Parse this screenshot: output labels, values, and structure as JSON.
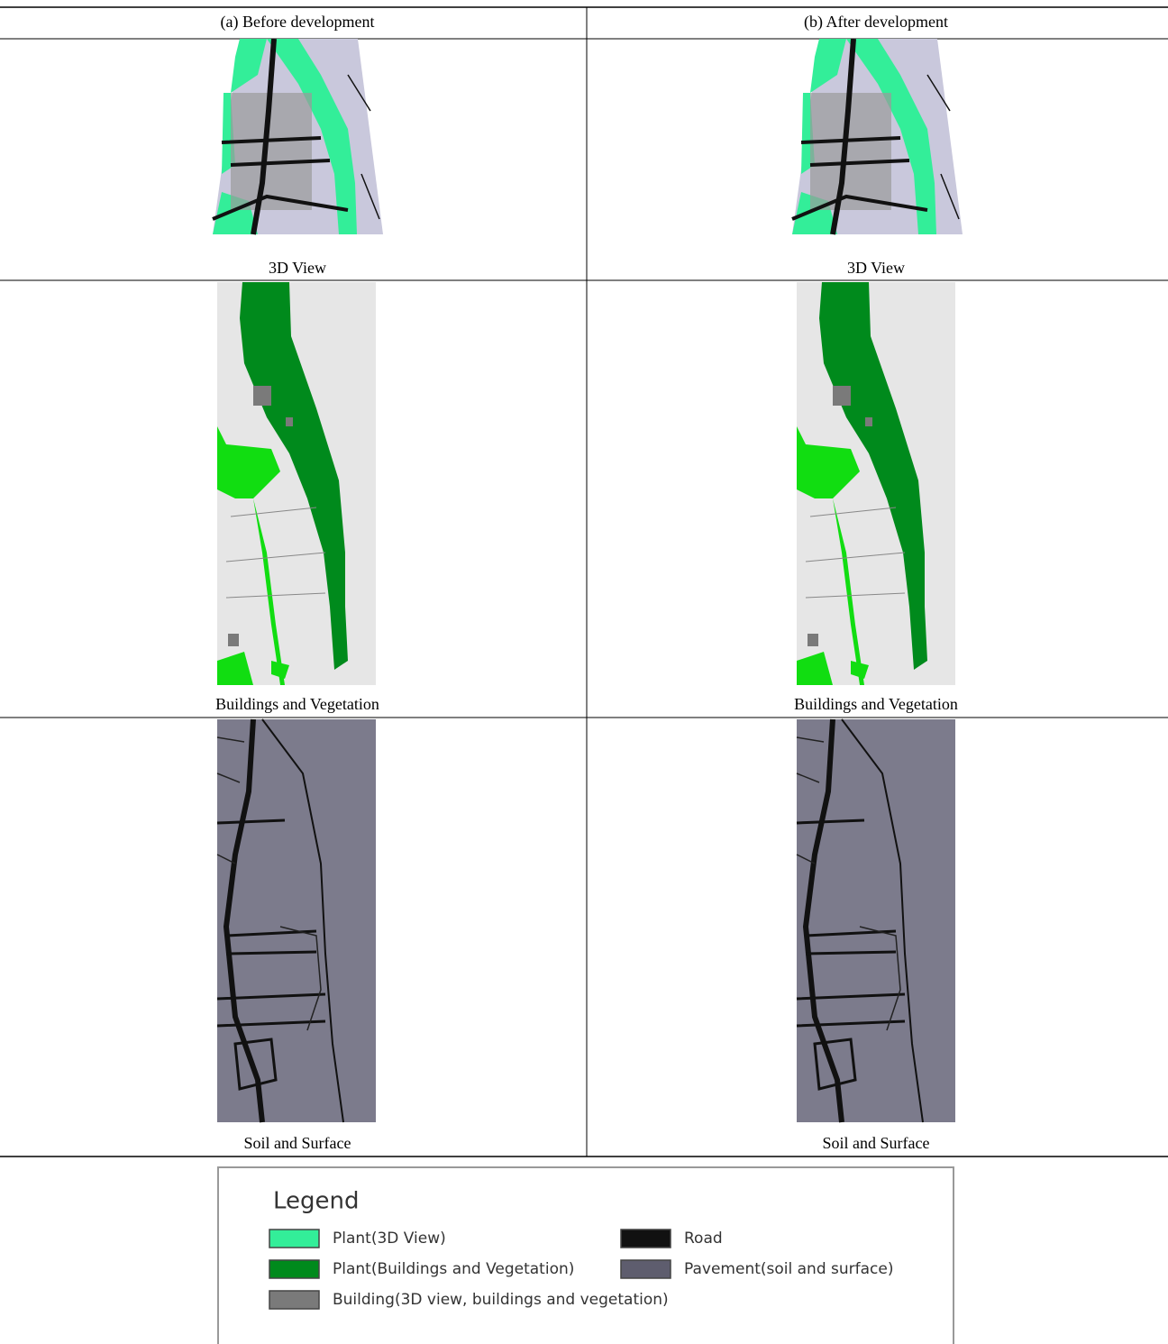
{
  "table": {
    "headers": [
      "(a) Before development",
      "(b) After development"
    ],
    "rows": [
      [
        "3D View",
        "3D View"
      ],
      [
        "Buildings and Vegetation",
        "Buildings and Vegetation"
      ],
      [
        "Soil and Surface",
        "Soil and Surface"
      ]
    ]
  },
  "legend": {
    "title": "Legend",
    "items": [
      {
        "label": "Plant(3D View)",
        "color": "#33ee99"
      },
      {
        "label": "Road",
        "color": "#111111"
      },
      {
        "label": "Plant(Buildings and Vegetation)",
        "color": "#008a1c"
      },
      {
        "label": "Pavement(soil and surface)",
        "color": "#5e5d6e"
      },
      {
        "label": "Building(3D view, buildings and vegetation)",
        "color": "#7a7a7a"
      }
    ]
  }
}
